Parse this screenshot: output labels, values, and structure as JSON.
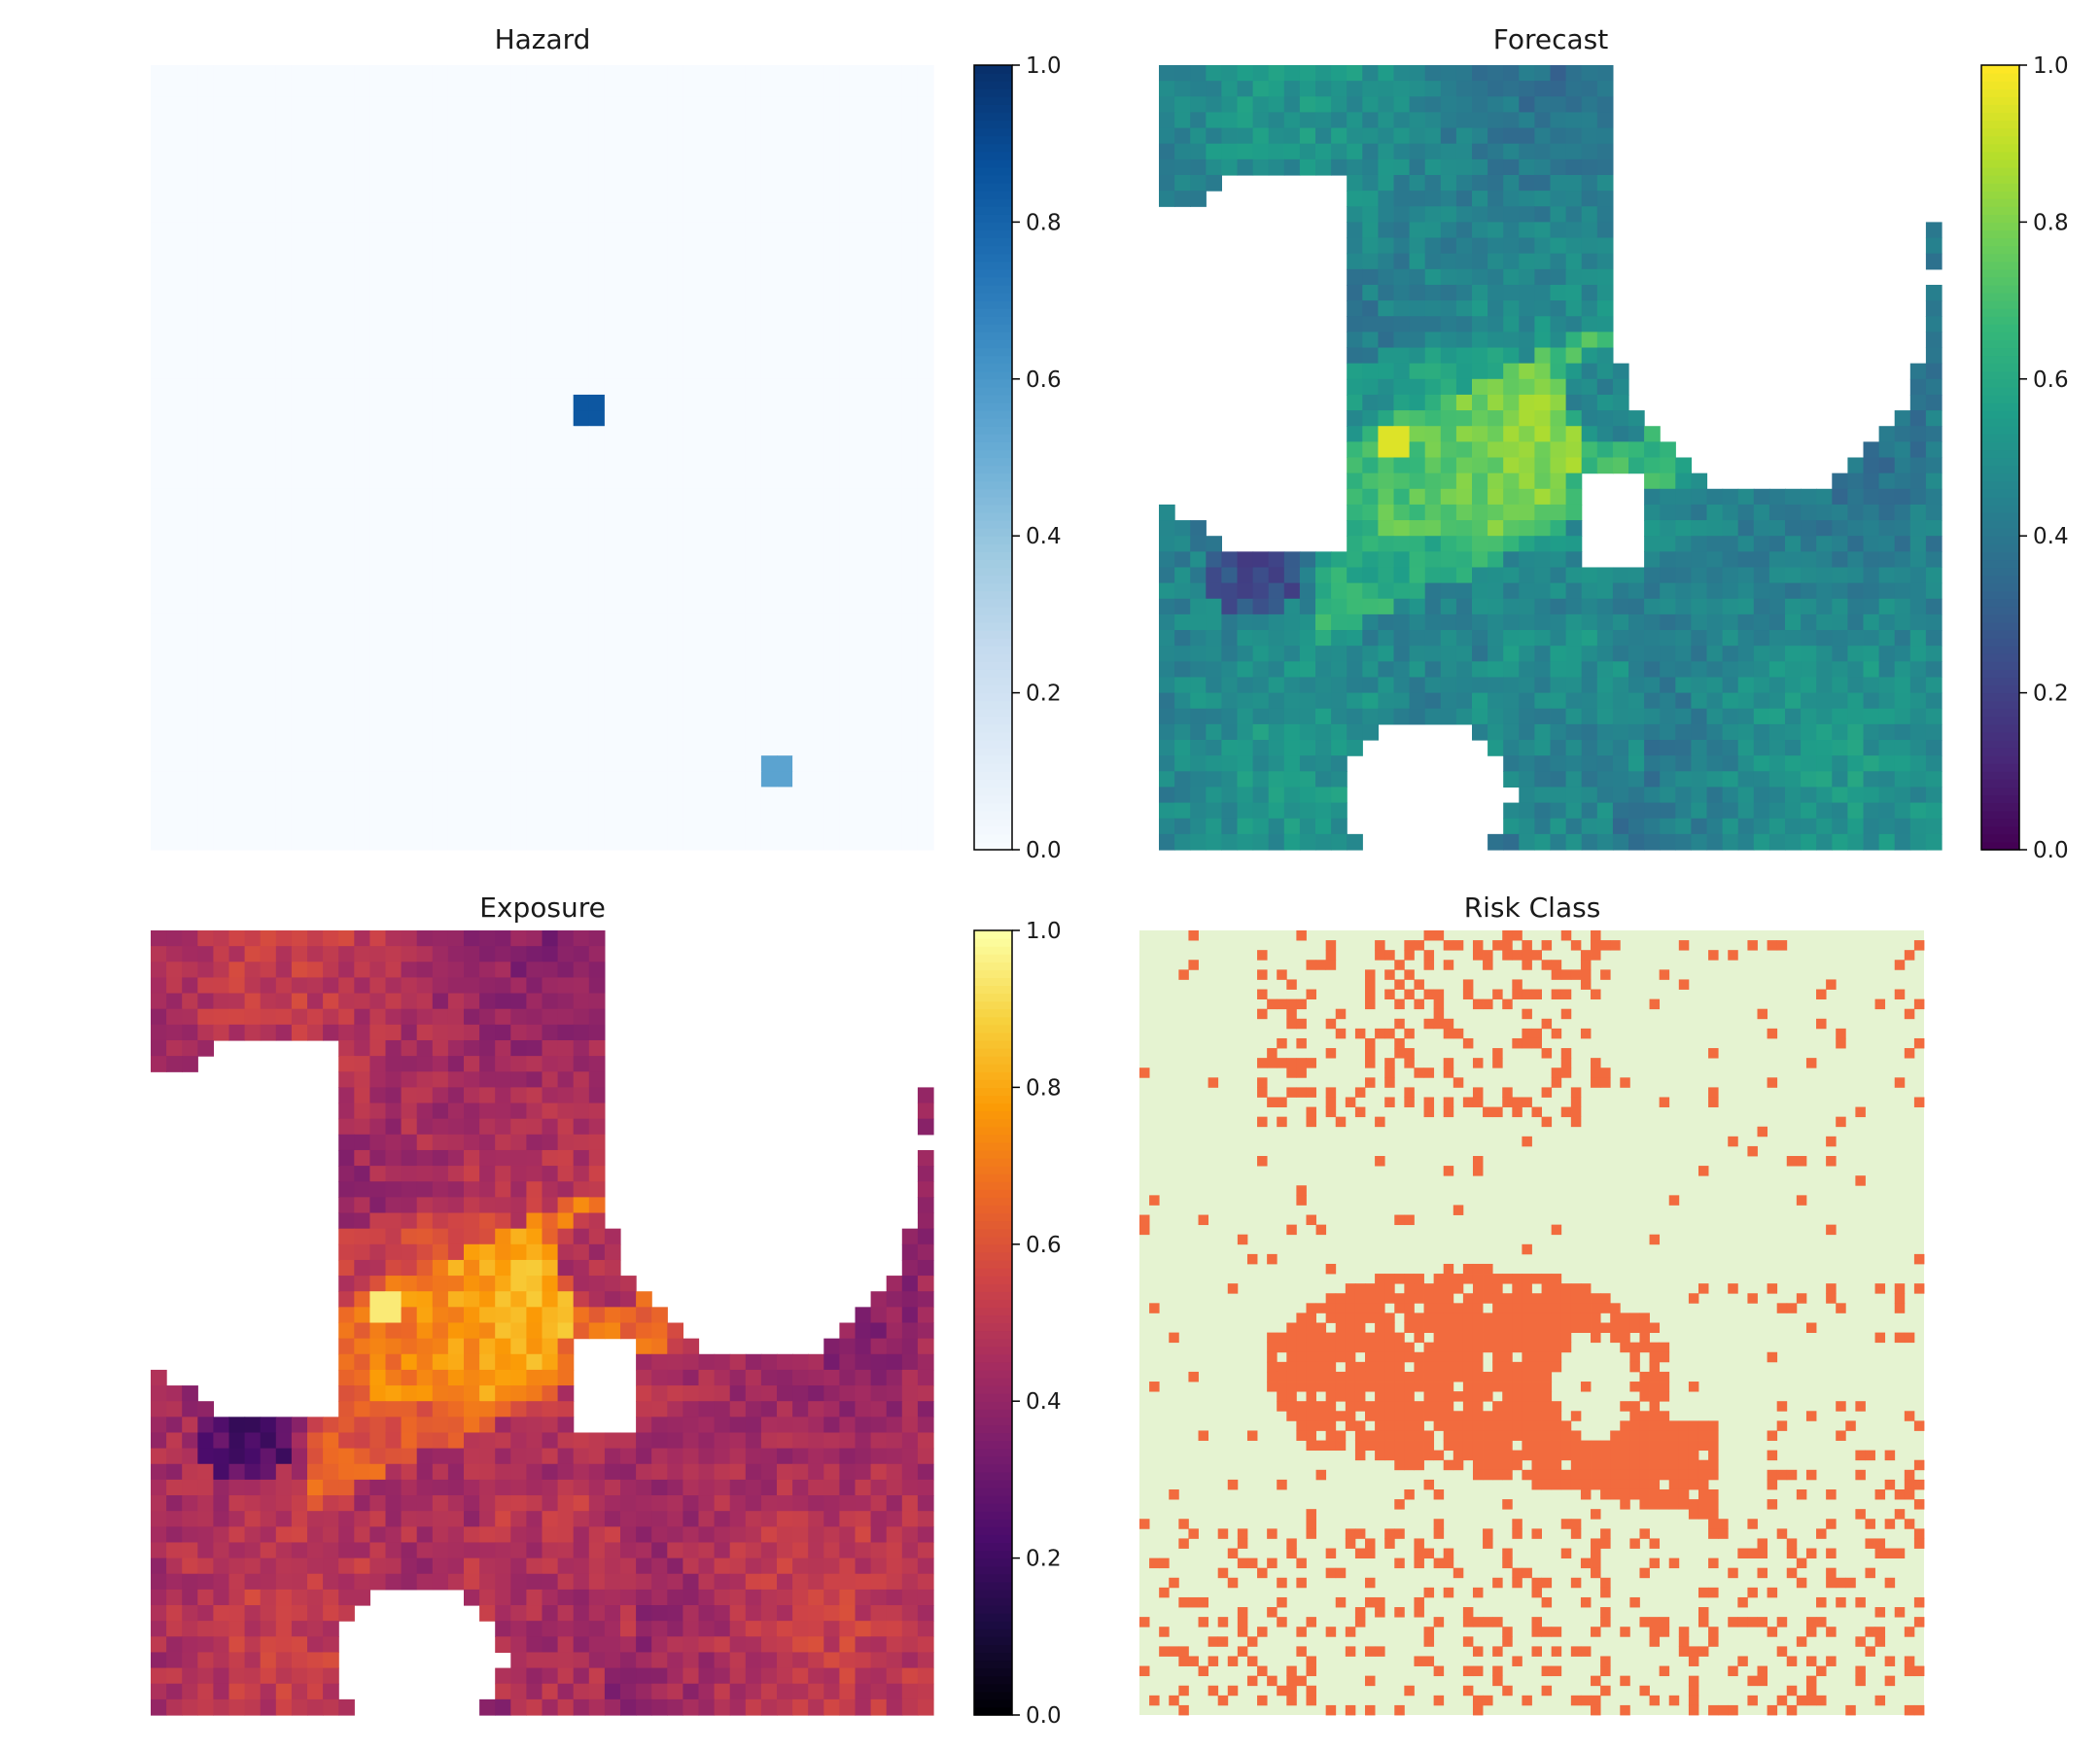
{
  "chart_data": [
    {
      "type": "heatmap",
      "title": "Hazard",
      "colormap": "Blues",
      "colorbar": {
        "ticks": [
          "0.0",
          "0.2",
          "0.4",
          "0.6",
          "0.8",
          "1.0"
        ],
        "range": [
          0,
          1
        ]
      },
      "hotspots": [
        {
          "col": 0.56,
          "row": 0.44,
          "value": 0.85
        },
        {
          "col": 0.8,
          "row": 0.9,
          "value": 0.55
        }
      ],
      "background_value": 0.0
    },
    {
      "type": "heatmap",
      "title": "Forecast",
      "colormap": "viridis",
      "colorbar": {
        "ticks": [
          "0.0",
          "0.2",
          "0.4",
          "0.6",
          "0.8",
          "1.0"
        ],
        "range": [
          0,
          1
        ]
      },
      "typical_range": [
        0.3,
        0.7
      ],
      "max_spot": {
        "col": 0.3,
        "row": 0.48,
        "value": 0.95
      }
    },
    {
      "type": "heatmap",
      "title": "Exposure",
      "colormap": "inferno",
      "colorbar": {
        "ticks": [
          "0.0",
          "0.2",
          "0.4",
          "0.6",
          "0.8",
          "1.0"
        ],
        "range": [
          0,
          1
        ]
      },
      "typical_range": [
        0.3,
        0.7
      ],
      "max_spot": {
        "col": 0.3,
        "row": 0.48,
        "value": 0.95
      }
    },
    {
      "type": "heatmap",
      "title": "Risk Class",
      "colormap": "categorical",
      "classes": [
        {
          "value": 0,
          "color": "#e5f3d1"
        },
        {
          "value": 1,
          "color": "#f26b3e"
        }
      ]
    }
  ],
  "colors": {
    "blues": [
      "#f7fbff",
      "#deebf7",
      "#c6dbef",
      "#9ecae1",
      "#6baed6",
      "#4292c6",
      "#2171b5",
      "#08519c",
      "#08306b"
    ],
    "viridis": [
      "#440154",
      "#482878",
      "#3e4989",
      "#31688e",
      "#26828e",
      "#1f9e89",
      "#35b779",
      "#6ece58",
      "#b5de2b",
      "#fde725"
    ],
    "inferno": [
      "#000004",
      "#1b0c41",
      "#4a0c6b",
      "#781c6d",
      "#a52c60",
      "#cf4446",
      "#ed6925",
      "#fb9b06",
      "#f7d13d",
      "#fcffa4"
    ],
    "risk_low": "#e5f3d1",
    "risk_high": "#f26b3e"
  }
}
